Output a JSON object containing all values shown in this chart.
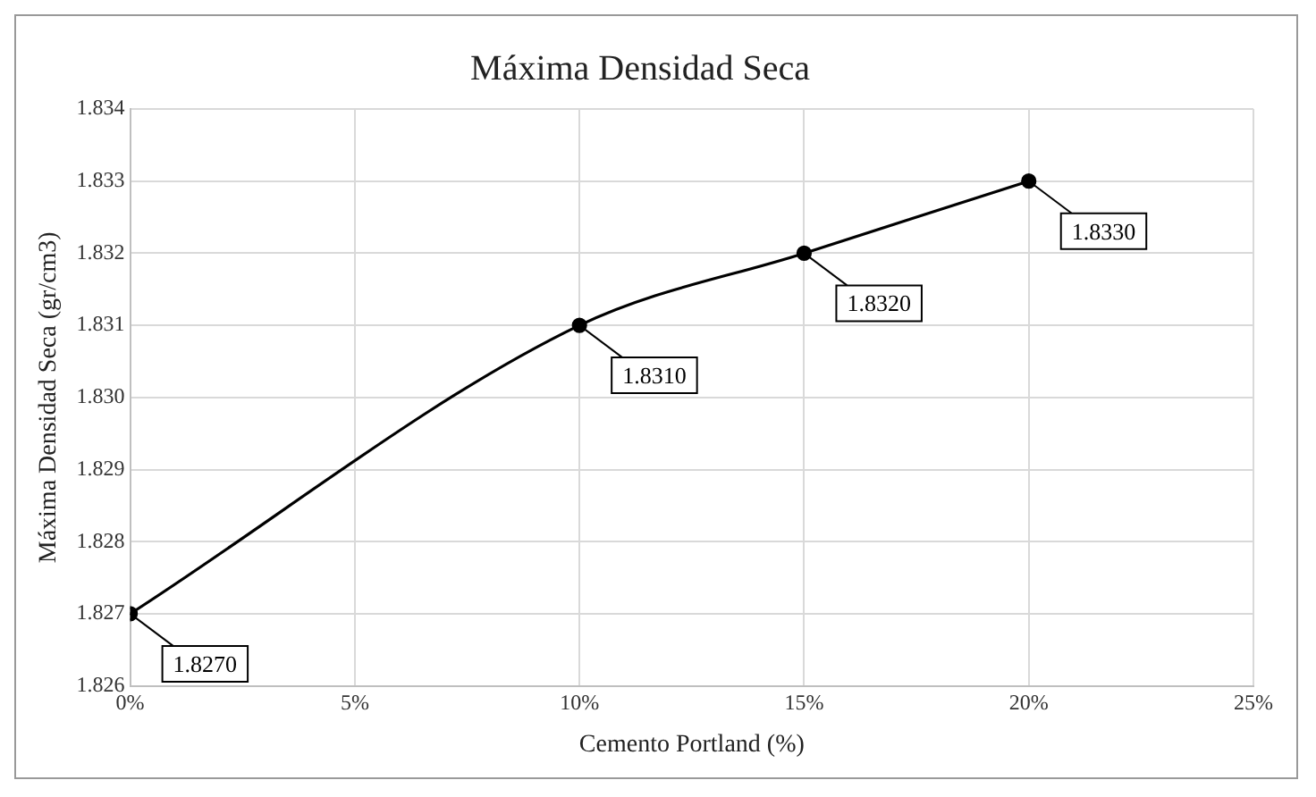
{
  "chart_data": {
    "type": "line",
    "title": "Máxima Densidad Seca",
    "xlabel": "Cemento Portland (%)",
    "ylabel": "Máxima Densidad Seca (gr/cm3)",
    "x": [
      0,
      10,
      15,
      20
    ],
    "series": [
      {
        "color": "#000000",
        "values": [
          1.827,
          1.831,
          1.832,
          1.833
        ],
        "value_labels": [
          "1.8270",
          "1.8310",
          "1.8320",
          "1.8330"
        ]
      }
    ],
    "xlim": [
      0,
      25
    ],
    "xticks": [
      {
        "value": 0,
        "label": "0%"
      },
      {
        "value": 5,
        "label": "5%"
      },
      {
        "value": 10,
        "label": "10%"
      },
      {
        "value": 15,
        "label": "15%"
      },
      {
        "value": 20,
        "label": "20%"
      },
      {
        "value": 25,
        "label": "25%"
      }
    ],
    "ylim": [
      1.826,
      1.834
    ],
    "yticks": [
      1.826,
      1.827,
      1.828,
      1.829,
      {
        "value": 1.83,
        "label": "1.830"
      },
      1.831,
      1.832,
      1.833,
      1.834
    ],
    "grid": true,
    "legend": false,
    "marker": "circle",
    "line_style": "solid"
  }
}
